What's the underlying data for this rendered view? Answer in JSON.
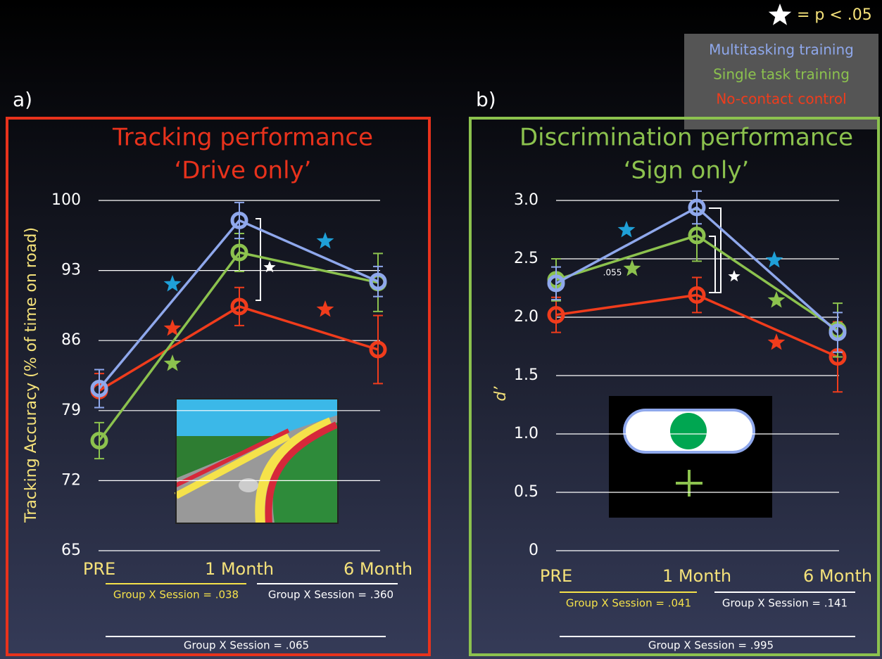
{
  "significance_note": "= p < .05",
  "legend": {
    "items": [
      {
        "name": "Multitasking training",
        "color": "#8fa8ec"
      },
      {
        "name": "Single task training",
        "color": "#8cc24e"
      },
      {
        "name": "No-contact control",
        "color": "#f03c1c"
      }
    ]
  },
  "panel_labels": [
    "a)",
    "b)"
  ],
  "chart_data": [
    {
      "type": "line",
      "title": "Tracking performance",
      "subtitle": "‘Drive only’",
      "y_label": "Tracking Accuracy (% of time on road)",
      "categories": [
        "PRE",
        "1 Month",
        "6 Month"
      ],
      "ylim": [
        65,
        100
      ],
      "yticks": [
        65,
        72,
        79,
        86,
        93,
        100
      ],
      "grid": true,
      "series": [
        {
          "color": "#8fa8ec",
          "values": [
            81.2,
            98.0,
            91.9
          ],
          "errors": [
            1.9,
            1.8,
            1.5
          ]
        },
        {
          "color": "#8cc24e",
          "values": [
            76.0,
            94.8,
            91.8
          ],
          "errors": [
            1.8,
            1.9,
            2.9
          ]
        },
        {
          "color": "#f03c1c",
          "values": [
            81.0,
            89.4,
            85.1
          ],
          "errors": [
            1.7,
            1.9,
            3.4
          ]
        }
      ],
      "annotations": [
        "Group X Session = .038",
        "Group X Session = .360",
        "Group X Session = .065"
      ]
    },
    {
      "type": "line",
      "title": "Discrimination performance",
      "subtitle": "‘Sign only’",
      "y_label": "d’",
      "categories": [
        "PRE",
        "1 Month",
        "6 Month"
      ],
      "ylim": [
        0,
        3
      ],
      "yticks": [
        0,
        0.5,
        {
          "value": 1,
          "label": "1.0"
        },
        1.5,
        {
          "value": 2,
          "label": "2.0"
        },
        2.5,
        {
          "value": 3,
          "label": "3.0"
        }
      ],
      "grid": true,
      "series": [
        {
          "color": "#8fa8ec",
          "values": [
            2.29,
            2.94,
            1.87
          ],
          "errors": [
            0.14,
            0.14,
            0.17
          ]
        },
        {
          "color": "#8cc24e",
          "values": [
            2.32,
            2.7,
            1.89
          ],
          "errors": [
            0.18,
            0.22,
            0.23
          ]
        },
        {
          "color": "#f03c1c",
          "values": [
            2.02,
            2.19,
            1.66
          ],
          "errors": [
            0.15,
            0.15,
            0.3
          ]
        }
      ],
      "annotations": [
        "Group X Session = .041",
        "Group X Session = .141",
        "Group X Session = .995",
        ".055"
      ]
    }
  ]
}
